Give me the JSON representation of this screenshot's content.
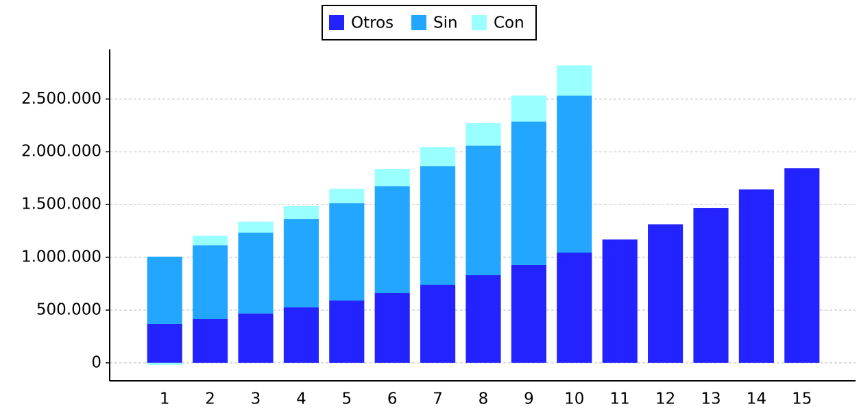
{
  "chart_data": {
    "type": "stacked_bar",
    "categories": [
      "1",
      "2",
      "3",
      "4",
      "5",
      "6",
      "7",
      "8",
      "9",
      "10",
      "11",
      "12",
      "13",
      "14",
      "15"
    ],
    "series": [
      {
        "name": "Otros",
        "color": "#2323ff",
        "values": [
          370000,
          415000,
          468000,
          526000,
          591000,
          662000,
          740000,
          831000,
          929000,
          1045000,
          1169000,
          1312000,
          1468000,
          1643000,
          1844000
        ]
      },
      {
        "name": "Sin",
        "color": "#22a6ff",
        "values": [
          636000,
          700000,
          766000,
          838000,
          922000,
          1013000,
          1124000,
          1227000,
          1357000,
          1487000,
          null,
          null,
          null,
          null,
          null
        ]
      },
      {
        "name": "Con",
        "color": "#99ffff",
        "values": [
          -20000,
          90000,
          104000,
          123000,
          136000,
          163000,
          181000,
          215000,
          246000,
          286000,
          null,
          null,
          null,
          null,
          null
        ]
      }
    ],
    "ylim": [
      -170000,
      2970000
    ],
    "yticks": [
      0,
      {
        "value": 500000,
        "label": "500.000"
      },
      {
        "value": 1000000,
        "label": "1.000.000"
      },
      {
        "value": 1500000,
        "label": "1.500.000"
      },
      {
        "value": 2000000,
        "label": "2.000.000"
      },
      {
        "value": 2500000,
        "label": "2.500.000"
      }
    ],
    "grid": true,
    "legend": "top"
  }
}
